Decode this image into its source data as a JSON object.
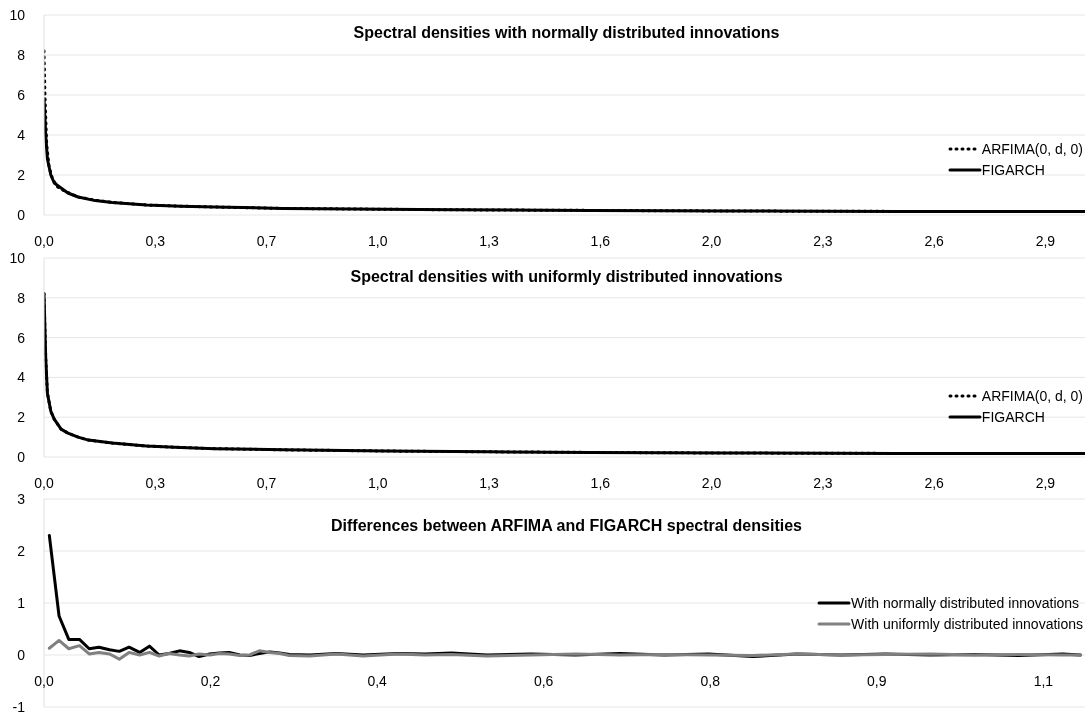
{
  "chart_data": [
    {
      "type": "line",
      "title": "Spectral densities with normally distributed innovations",
      "xlim": [
        0,
        3.05
      ],
      "xticks": [
        {
          "value": 0,
          "label": "0,0"
        },
        {
          "value": 0.326,
          "label": "0,3"
        },
        {
          "value": 0.652,
          "label": "0,7"
        },
        {
          "value": 0.978,
          "label": "1,0"
        },
        {
          "value": 1.304,
          "label": "1,3"
        },
        {
          "value": 1.63,
          "label": "1,6"
        },
        {
          "value": 1.956,
          "label": "2,0"
        },
        {
          "value": 2.282,
          "label": "2,3"
        },
        {
          "value": 2.608,
          "label": "2,6"
        },
        {
          "value": 2.934,
          "label": "2,9"
        }
      ],
      "ylim": [
        0,
        10
      ],
      "yticks": [
        0,
        2,
        4,
        6,
        8,
        10
      ],
      "grid": "y",
      "legend": "right",
      "series": [
        {
          "name": "ARFIMA(0, d, 0)",
          "color": "#000000",
          "line_style": "dotted",
          "x": [
            0,
            0.003,
            0.008,
            0.015,
            0.025,
            0.04,
            0.06,
            0.08,
            0.1,
            0.15,
            0.2,
            0.3,
            0.4,
            0.5,
            0.7,
            0.9,
            1.2,
            1.6,
            2.0,
            2.5,
            3.05
          ],
          "values": [
            8.2,
            5.9,
            3.5,
            2.4,
            1.8,
            1.4,
            1.2,
            1.05,
            0.9,
            0.74,
            0.63,
            0.5,
            0.44,
            0.4,
            0.33,
            0.3,
            0.26,
            0.23,
            0.2,
            0.18,
            0.17
          ]
        },
        {
          "name": "FIGARCH",
          "color": "#000000",
          "line_style": "solid",
          "x": [
            0,
            0.005,
            0.01,
            0.02,
            0.03,
            0.05,
            0.07,
            0.1,
            0.15,
            0.2,
            0.3,
            0.4,
            0.5,
            0.7,
            0.9,
            1.2,
            1.6,
            2.0,
            2.5,
            3.05
          ],
          "values": [
            5.8,
            4.0,
            2.8,
            2.0,
            1.6,
            1.35,
            1.1,
            0.9,
            0.72,
            0.62,
            0.5,
            0.44,
            0.4,
            0.33,
            0.3,
            0.26,
            0.23,
            0.2,
            0.18,
            0.17
          ]
        }
      ]
    },
    {
      "type": "line",
      "title": "Spectral densities with uniformly distributed innovations",
      "xlim": [
        0,
        3.05
      ],
      "xticks": [
        {
          "value": 0,
          "label": "0,0"
        },
        {
          "value": 0.326,
          "label": "0,3"
        },
        {
          "value": 0.652,
          "label": "0,7"
        },
        {
          "value": 0.978,
          "label": "1,0"
        },
        {
          "value": 1.304,
          "label": "1,3"
        },
        {
          "value": 1.63,
          "label": "1,6"
        },
        {
          "value": 1.956,
          "label": "2,0"
        },
        {
          "value": 2.282,
          "label": "2,3"
        },
        {
          "value": 2.608,
          "label": "2,6"
        },
        {
          "value": 2.934,
          "label": "2,9"
        }
      ],
      "ylim": [
        0,
        10
      ],
      "yticks": [
        0,
        2,
        4,
        6,
        8,
        10
      ],
      "grid": "y",
      "legend": "right",
      "series": [
        {
          "name": "ARFIMA(0, d, 0)",
          "color": "#000000",
          "line_style": "dotted",
          "x": [
            0,
            0.005,
            0.01,
            0.02,
            0.03,
            0.05,
            0.07,
            0.1,
            0.13,
            0.2,
            0.3,
            0.4,
            0.5,
            0.7,
            1.0,
            1.3,
            1.6,
            2.0,
            2.5,
            3.05
          ],
          "values": [
            8.2,
            5.0,
            3.2,
            2.3,
            1.9,
            1.4,
            1.2,
            1.0,
            0.85,
            0.7,
            0.55,
            0.48,
            0.42,
            0.36,
            0.3,
            0.26,
            0.23,
            0.2,
            0.18,
            0.17
          ]
        },
        {
          "name": "FIGARCH",
          "color": "#000000",
          "line_style": "solid",
          "x": [
            0,
            0.005,
            0.01,
            0.02,
            0.03,
            0.05,
            0.07,
            0.1,
            0.13,
            0.2,
            0.3,
            0.4,
            0.5,
            0.7,
            1.0,
            1.3,
            1.6,
            2.0,
            2.5,
            3.05
          ],
          "values": [
            8.2,
            5.0,
            3.2,
            2.3,
            1.9,
            1.4,
            1.2,
            1.0,
            0.85,
            0.7,
            0.55,
            0.48,
            0.42,
            0.36,
            0.3,
            0.26,
            0.23,
            0.2,
            0.18,
            0.17
          ]
        }
      ]
    },
    {
      "type": "line",
      "title": "Differences between ARFIMA and FIGARCH spectral densities",
      "xlim": [
        0,
        1.175
      ],
      "xticks": [
        {
          "value": 0,
          "label": "0,0"
        },
        {
          "value": 0.188,
          "label": "0,2"
        },
        {
          "value": 0.376,
          "label": "0,4"
        },
        {
          "value": 0.564,
          "label": "0,6"
        },
        {
          "value": 0.752,
          "label": "0,8"
        },
        {
          "value": 0.94,
          "label": "0,9"
        },
        {
          "value": 1.128,
          "label": "1,1"
        }
      ],
      "ylim": [
        -1,
        3
      ],
      "yticks": [
        -1,
        0,
        1,
        2,
        3
      ],
      "grid": "y",
      "legend": "right",
      "series": [
        {
          "name": "With normally distributed innovations",
          "color": "#000000",
          "line_style": "solid",
          "x": [
            0.006,
            0.017,
            0.028,
            0.04,
            0.051,
            0.062,
            0.074,
            0.085,
            0.096,
            0.108,
            0.119,
            0.13,
            0.141,
            0.153,
            0.164,
            0.175,
            0.187,
            0.198,
            0.209,
            0.221,
            0.232,
            0.243,
            0.255,
            0.266,
            0.277,
            0.3,
            0.33,
            0.36,
            0.4,
            0.43,
            0.46,
            0.5,
            0.55,
            0.6,
            0.65,
            0.7,
            0.75,
            0.8,
            0.85,
            0.9,
            0.95,
            1.0,
            1.05,
            1.1,
            1.15,
            1.17
          ],
          "values": [
            2.3,
            0.75,
            0.3,
            0.3,
            0.12,
            0.15,
            0.1,
            0.07,
            0.15,
            0.05,
            0.17,
            0.0,
            0.03,
            0.08,
            0.05,
            -0.03,
            0.02,
            0.04,
            0.05,
            0.0,
            -0.01,
            0.03,
            0.06,
            0.04,
            0.01,
            0.0,
            0.03,
            0.0,
            0.03,
            0.02,
            0.04,
            0.0,
            0.02,
            0.0,
            0.03,
            0.0,
            0.02,
            -0.03,
            0.02,
            0.0,
            0.02,
            0.0,
            0.01,
            -0.01,
            0.02,
            0.0
          ]
        },
        {
          "name": "With uniformly distributed innovations",
          "color": "#808080",
          "line_style": "solid",
          "x": [
            0.006,
            0.017,
            0.028,
            0.04,
            0.051,
            0.062,
            0.074,
            0.085,
            0.096,
            0.108,
            0.119,
            0.13,
            0.141,
            0.153,
            0.164,
            0.175,
            0.187,
            0.198,
            0.209,
            0.221,
            0.232,
            0.243,
            0.255,
            0.266,
            0.277,
            0.3,
            0.33,
            0.36,
            0.4,
            0.43,
            0.46,
            0.5,
            0.55,
            0.6,
            0.65,
            0.7,
            0.75,
            0.8,
            0.85,
            0.9,
            0.95,
            1.0,
            1.05,
            1.1,
            1.15,
            1.17
          ],
          "values": [
            0.13,
            0.28,
            0.12,
            0.18,
            0.02,
            0.05,
            0.02,
            -0.08,
            0.05,
            0.0,
            0.05,
            -0.02,
            0.03,
            0.0,
            -0.02,
            0.02,
            0.0,
            0.03,
            0.02,
            -0.01,
            0.0,
            0.08,
            0.05,
            0.03,
            -0.01,
            -0.02,
            0.02,
            -0.02,
            0.02,
            0.0,
            0.01,
            -0.02,
            0.0,
            0.02,
            0.0,
            0.01,
            0.0,
            -0.01,
            0.02,
            0.0,
            0.01,
            0.02,
            0.0,
            0.01,
            0.0,
            0.0
          ]
        }
      ]
    }
  ]
}
